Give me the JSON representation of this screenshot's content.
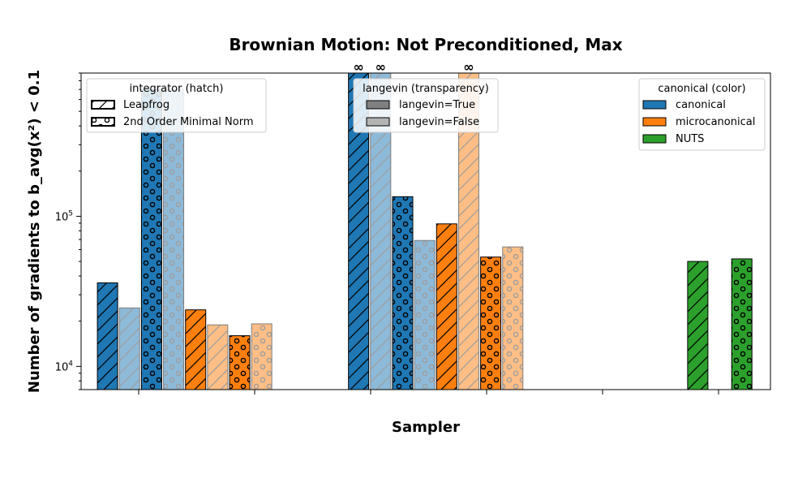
{
  "chart_data": {
    "type": "bar",
    "title": "Brownian Motion: Not Preconditioned, Max",
    "xlabel": "Sampler",
    "ylabel": "Number of gradients to b_avg(x²) < 0.1",
    "yscale": "log",
    "ylim": [
      7000,
      900000
    ],
    "y_ticks": [
      {
        "value": 10000,
        "base": "10",
        "exp": "4"
      },
      {
        "value": 100000,
        "base": "10",
        "exp": "5"
      }
    ],
    "x_ticks": 6,
    "infinity_symbol": "∞",
    "colors": {
      "canonical": "#1f77b4",
      "microcanonical": "#ff7f0e",
      "NUTS": "#2ca02c"
    },
    "bars": [
      {
        "x": 0.0,
        "value": 36000,
        "color": "canonical",
        "hatch": "diag",
        "langevin": true,
        "infinite": false
      },
      {
        "x": 0.5,
        "value": 24500,
        "color": "canonical",
        "hatch": "diag",
        "langevin": false,
        "infinite": false
      },
      {
        "x": 1.0,
        "value": 700000,
        "color": "canonical",
        "hatch": "circle",
        "langevin": true,
        "infinite": false
      },
      {
        "x": 1.5,
        "value": 700000,
        "color": "canonical",
        "hatch": "circle",
        "langevin": false,
        "infinite": false
      },
      {
        "x": 2.0,
        "value": 23800,
        "color": "microcanonical",
        "hatch": "diag",
        "langevin": true,
        "infinite": false
      },
      {
        "x": 2.5,
        "value": 18900,
        "color": "microcanonical",
        "hatch": "diag",
        "langevin": false,
        "infinite": false
      },
      {
        "x": 3.0,
        "value": 16000,
        "color": "microcanonical",
        "hatch": "circle",
        "langevin": true,
        "infinite": false
      },
      {
        "x": 3.5,
        "value": 19200,
        "color": "microcanonical",
        "hatch": "circle",
        "langevin": false,
        "infinite": false
      },
      {
        "x": 5.7,
        "value": null,
        "color": "canonical",
        "hatch": "diag",
        "langevin": true,
        "infinite": true
      },
      {
        "x": 6.2,
        "value": null,
        "color": "canonical",
        "hatch": "diag",
        "langevin": false,
        "infinite": true
      },
      {
        "x": 6.7,
        "value": 135000,
        "color": "canonical",
        "hatch": "circle",
        "langevin": true,
        "infinite": false
      },
      {
        "x": 7.2,
        "value": 69000,
        "color": "canonical",
        "hatch": "circle",
        "langevin": false,
        "infinite": false
      },
      {
        "x": 7.7,
        "value": 89000,
        "color": "microcanonical",
        "hatch": "diag",
        "langevin": true,
        "infinite": false
      },
      {
        "x": 8.2,
        "value": null,
        "color": "microcanonical",
        "hatch": "diag",
        "langevin": false,
        "infinite": true
      },
      {
        "x": 8.7,
        "value": 53500,
        "color": "microcanonical",
        "hatch": "circle",
        "langevin": true,
        "infinite": false
      },
      {
        "x": 9.2,
        "value": 62500,
        "color": "microcanonical",
        "hatch": "circle",
        "langevin": false,
        "infinite": false
      },
      {
        "x": 13.4,
        "value": 50000,
        "color": "NUTS",
        "hatch": "diag",
        "langevin": true,
        "infinite": false
      },
      {
        "x": 14.4,
        "value": 52000,
        "color": "NUTS",
        "hatch": "circle",
        "langevin": true,
        "infinite": false
      }
    ],
    "legends": {
      "integrator": {
        "title": "integrator (hatch)",
        "placement": "top-left",
        "entries": [
          {
            "label": "Leapfrog",
            "hatch": "diag"
          },
          {
            "label": "2nd Order Minimal Norm",
            "hatch": "circle"
          }
        ]
      },
      "langevin": {
        "title": "langevin (transparency)",
        "placement": "top-center",
        "entries": [
          {
            "label": "langevin=True",
            "fill": "#808080"
          },
          {
            "label": "langevin=False",
            "fill": "#b3b3b3"
          }
        ]
      },
      "canonical": {
        "title": "canonical (color)",
        "placement": "top-right",
        "entries": [
          {
            "label": "canonical",
            "color": "canonical"
          },
          {
            "label": "microcanonical",
            "color": "microcanonical"
          },
          {
            "label": "NUTS",
            "color": "NUTS"
          }
        ]
      }
    }
  }
}
